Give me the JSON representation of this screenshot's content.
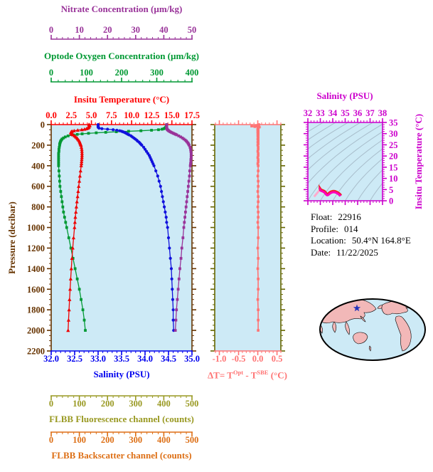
{
  "info": {
    "float_label": "Float:",
    "float_value": "22916",
    "profile_label": "Profile:",
    "profile_value": "014",
    "location_label": "Location:",
    "location_value": "50.4°N  164.8°E",
    "date_label": "Date:",
    "date_value": "11/22/2025"
  },
  "chart_data": {
    "profile_plot": {
      "type": "line",
      "ylabel": "Pressure (decibar)",
      "ylim": [
        0,
        2200
      ],
      "ytick_labels": [
        "0",
        "200",
        "400",
        "600",
        "800",
        "1000",
        "1200",
        "1400",
        "1600",
        "1800",
        "2000",
        "2200"
      ],
      "y_minor_step": 50,
      "pressure_color": "#663300",
      "plot_bg": "#CDEAF6",
      "grid": false,
      "pressures_dbar": [
        0,
        5,
        10,
        15,
        20,
        25,
        30,
        35,
        40,
        45,
        50,
        55,
        60,
        65,
        70,
        75,
        80,
        85,
        90,
        95,
        100,
        110,
        120,
        130,
        140,
        150,
        160,
        170,
        180,
        190,
        200,
        220,
        240,
        260,
        280,
        300,
        320,
        340,
        360,
        380,
        400,
        450,
        500,
        550,
        600,
        650,
        700,
        750,
        800,
        850,
        900,
        950,
        1000,
        1100,
        1200,
        1300,
        1400,
        1500,
        1600,
        1700,
        1800,
        1900,
        2000
      ],
      "axes": {
        "nitrate": {
          "label": "Nitrate Concentration (µm/kg)",
          "color": "#993399",
          "range": [
            0,
            50
          ],
          "tick_labels": [
            "0",
            "10",
            "20",
            "30",
            "40",
            "50"
          ],
          "minor_step": 2
        },
        "oxygen": {
          "label": "Optode Oxygen Concentration (µm/kg)",
          "color": "#009933",
          "range": [
            0,
            400
          ],
          "tick_labels": [
            "0",
            "100",
            "200",
            "300",
            "400"
          ],
          "minor_step": 20
        },
        "temperature": {
          "label": "Insitu Temperature (°C)",
          "color": "#FF0000",
          "range": [
            0,
            17.5
          ],
          "tick_labels": [
            "0.0",
            "2.5",
            "5.0",
            "7.5",
            "10.0",
            "12.5",
            "15.0",
            "17.5"
          ],
          "minor_step": 0.5
        },
        "salinity": {
          "label": "Salinity (PSU)",
          "color": "#0000EE",
          "range": [
            32,
            35
          ],
          "tick_labels": [
            "32.0",
            "32.5",
            "33.0",
            "33.5",
            "34.0",
            "34.5",
            "35.0"
          ],
          "minor_step": 0.1
        },
        "fluorescence": {
          "label": "FLBB Fluorescence channel (counts)",
          "color": "#999922",
          "range": [
            0,
            500
          ],
          "tick_labels": [
            "0",
            "100",
            "200",
            "300",
            "400",
            "500"
          ],
          "minor_step": 20
        },
        "backscatter": {
          "label": "FLBB Backscatter channel (counts)",
          "color": "#DD6F15",
          "range": [
            0,
            500
          ],
          "tick_labels": [
            "0",
            "100",
            "200",
            "300",
            "400",
            "500"
          ],
          "minor_step": 20
        }
      },
      "series": [
        {
          "name": "insitu_temperature",
          "axis": "temperature",
          "color": "#EE0000",
          "marker": "triangle",
          "values": [
            4.7,
            4.75,
            4.8,
            4.7,
            4.65,
            4.7,
            4.6,
            4.55,
            4.4,
            4.15,
            3.8,
            3.3,
            2.85,
            2.6,
            2.5,
            2.45,
            2.45,
            2.5,
            2.55,
            2.6,
            2.7,
            2.9,
            3.05,
            3.2,
            3.3,
            3.4,
            3.5,
            3.55,
            3.6,
            3.65,
            3.7,
            3.75,
            3.8,
            3.82,
            3.83,
            3.83,
            3.82,
            3.8,
            3.78,
            3.76,
            3.73,
            3.65,
            3.57,
            3.5,
            3.42,
            3.35,
            3.28,
            3.2,
            3.13,
            3.07,
            3.0,
            2.95,
            2.9,
            2.78,
            2.68,
            2.58,
            2.5,
            2.42,
            2.35,
            2.28,
            2.22,
            2.16,
            2.1
          ]
        },
        {
          "name": "salinity",
          "axis": "salinity",
          "color": "#1111DD",
          "marker": "circle",
          "values": [
            33.0,
            33.0,
            33.0,
            33.0,
            33.0,
            33.0,
            33.01,
            33.02,
            33.08,
            33.2,
            33.32,
            33.4,
            33.46,
            33.5,
            33.53,
            33.56,
            33.58,
            33.6,
            33.62,
            33.64,
            33.66,
            33.7,
            33.73,
            33.76,
            33.79,
            33.82,
            33.84,
            33.87,
            33.89,
            33.91,
            33.93,
            33.97,
            34.0,
            34.03,
            34.06,
            34.09,
            34.11,
            34.13,
            34.15,
            34.17,
            34.19,
            34.23,
            34.27,
            34.3,
            34.33,
            34.35,
            34.37,
            34.39,
            34.41,
            34.43,
            34.45,
            34.46,
            34.48,
            34.5,
            34.52,
            34.54,
            34.56,
            34.57,
            34.58,
            34.59,
            34.6,
            34.6,
            34.61
          ]
        },
        {
          "name": "optode_oxygen",
          "axis": "oxygen",
          "color": "#009933",
          "marker": "square",
          "values": [
            328,
            328,
            328,
            327,
            327,
            326,
            325,
            323,
            320,
            315,
            305,
            285,
            255,
            220,
            185,
            155,
            128,
            106,
            88,
            74,
            63,
            48,
            40,
            35,
            31,
            29,
            27,
            26,
            25,
            24,
            24,
            23,
            22,
            22,
            21,
            21,
            21,
            21,
            21,
            21,
            21,
            22,
            23,
            24,
            25,
            27,
            29,
            31,
            33,
            35,
            38,
            41,
            44,
            50,
            56,
            62,
            68,
            74,
            80,
            85,
            90,
            94,
            97
          ]
        },
        {
          "name": "nitrate",
          "axis": "nitrate",
          "color": "#993399",
          "marker": "square",
          "values": [
            41,
            41,
            41,
            41,
            41,
            41,
            41,
            41,
            41.1,
            41.2,
            41.3,
            41.5,
            41.7,
            42,
            42.3,
            42.6,
            43,
            43.4,
            43.8,
            44.2,
            44.6,
            45.3,
            46,
            46.6,
            47.1,
            47.6,
            48,
            48.3,
            48.6,
            48.8,
            49,
            49.3,
            49.5,
            49.6,
            49.7,
            49.7,
            49.7,
            49.6,
            49.6,
            49.5,
            49.4,
            49.2,
            49.1,
            48.9,
            48.7,
            48.5,
            48.3,
            48.1,
            47.9,
            47.7,
            47.5,
            47.3,
            47.1,
            46.8,
            46.4,
            46.1,
            45.7,
            45.4,
            45.1,
            44.8,
            44.5,
            44.3,
            44.1
          ]
        }
      ],
      "note": "FLBB fluorescence and backscatter scale bars shown below plot; no FLBB curve visible in plot"
    },
    "delta_t_plot": {
      "type": "line",
      "title_parts": {
        "prefix": "ΔT= T",
        "sup1": "Opt",
        "mid": " - T",
        "sup2": "SBE",
        "suffix": " (°C)"
      },
      "xlim": [
        -1.12,
        0.6
      ],
      "tick_labels": [
        "-1.0",
        "-0.5",
        "0.0",
        "0.5"
      ],
      "minor_step": 0.1,
      "color": "#FF7373",
      "spine_color": "#666600",
      "plot_bg": "#CDEAF6",
      "ylim": [
        0,
        2200
      ],
      "values_on_same_pressure_grid": [
        0.03,
        0.01,
        -0.04,
        -0.16,
        -0.08,
        0.04,
        0.01,
        0,
        0.01,
        0,
        0.01,
        0,
        0.01,
        0.01,
        0,
        0.01,
        0.01,
        0,
        0.01,
        0.01,
        0.01,
        0,
        0.01,
        0.01,
        0,
        0.01,
        0.01,
        0,
        0.01,
        0.01,
        0,
        0.01,
        0.01,
        0,
        0.01,
        0.01,
        0,
        0.01,
        0.01,
        0,
        0.01,
        0.01,
        0,
        0.01,
        0.01,
        0,
        0.01,
        0.01,
        0,
        0.01,
        0.01,
        0,
        0.01,
        0.01,
        0,
        0.01,
        0,
        0.01,
        0.01,
        0,
        0.01,
        0.01,
        0.01
      ]
    },
    "ts_plot": {
      "type": "line",
      "title": "Salinity (PSU)",
      "xlim": [
        32,
        38
      ],
      "xtick_labels": [
        "32",
        "33",
        "34",
        "35",
        "36",
        "37",
        "38"
      ],
      "x_minor_step": 0.25,
      "ylabel": "Insitu Temperature (°C)",
      "ylim": [
        0,
        35
      ],
      "ytick_labels": [
        "0",
        "5",
        "10",
        "15",
        "20",
        "25",
        "30",
        "35"
      ],
      "y_minor_step": 1,
      "axis_color": "#CC00CC",
      "curve_color": "#FF00BB",
      "curve_edge_color": "#EE2222",
      "secondary_color": "#FFAACC",
      "secondary_points": [
        [
          32.5,
          1.8
        ],
        [
          33.05,
          5.5
        ]
      ],
      "plot_bg": "#CDEAF6",
      "has_density_contours": true,
      "contour_color": "#A8BDCB",
      "curve_derived_from": [
        "salinity",
        "insitu_temperature"
      ]
    },
    "map": {
      "projection": "global-ellipse-pacific-centered",
      "land_color": "#F2B8B8",
      "ocean_color": "#CDEAF6",
      "outline_color": "#000000",
      "marker": {
        "shape": "star",
        "color": "#2233BB",
        "position_text": "50.4°N 164.8°E"
      }
    }
  }
}
